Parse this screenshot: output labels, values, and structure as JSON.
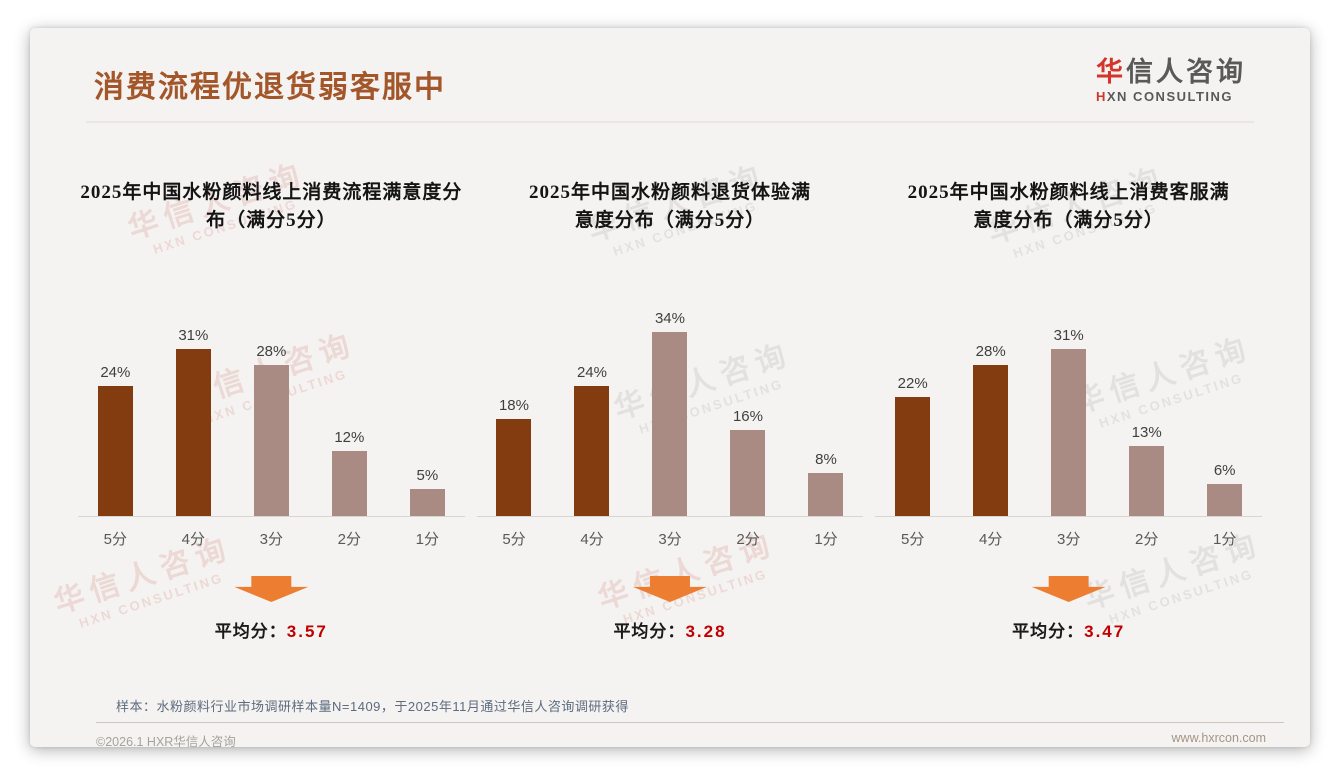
{
  "page": {
    "title": "消费流程优退货弱客服中",
    "logo": {
      "zh_red": "华",
      "zh_rest": "信人咨询",
      "en_red": "H",
      "en_rest": "XN CONSULTING"
    },
    "watermark": {
      "line1": "华信人咨询",
      "line2": "HXN CONSULTING"
    },
    "footnote": "样本：水粉颜料行业市场调研样本量N=1409，于2025年11月通过华信人咨询调研获得",
    "footer_left": "©2026.1 HXR华信人咨询",
    "footer_right": "www.hxrcon.com"
  },
  "colors": {
    "bar_dark": "#833C0F",
    "bar_light": "#AA8B84",
    "title_brown": "#A4562B",
    "avg_red": "#C00000",
    "arrow_orange": "#ED7D31",
    "card_bg": "#F4F3F1"
  },
  "chart_data": [
    {
      "type": "bar",
      "title": "2025年中国水粉颜料线上消费流程满意度分布（满分5分）",
      "categories": [
        "5分",
        "4分",
        "3分",
        "2分",
        "1分"
      ],
      "values": [
        24,
        31,
        28,
        12,
        5
      ],
      "unit": "%",
      "ylim": [
        0,
        35
      ],
      "bar_colors": [
        "#833C0F",
        "#833C0F",
        "#AA8B84",
        "#AA8B84",
        "#AA8B84"
      ],
      "avg_label": "平均分：",
      "avg_value": "3.57"
    },
    {
      "type": "bar",
      "title": "2025年中国水粉颜料退货体验满意度分布（满分5分）",
      "categories": [
        "5分",
        "4分",
        "3分",
        "2分",
        "1分"
      ],
      "values": [
        18,
        24,
        34,
        16,
        8
      ],
      "unit": "%",
      "ylim": [
        0,
        35
      ],
      "bar_colors": [
        "#833C0F",
        "#833C0F",
        "#AA8B84",
        "#AA8B84",
        "#AA8B84"
      ],
      "avg_label": "平均分：",
      "avg_value": "3.28"
    },
    {
      "type": "bar",
      "title": "2025年中国水粉颜料线上消费客服满意度分布（满分5分）",
      "categories": [
        "5分",
        "4分",
        "3分",
        "2分",
        "1分"
      ],
      "values": [
        22,
        28,
        31,
        13,
        6
      ],
      "unit": "%",
      "ylim": [
        0,
        35
      ],
      "bar_colors": [
        "#833C0F",
        "#833C0F",
        "#AA8B84",
        "#AA8B84",
        "#AA8B84"
      ],
      "avg_label": "平均分：",
      "avg_value": "3.47"
    }
  ]
}
